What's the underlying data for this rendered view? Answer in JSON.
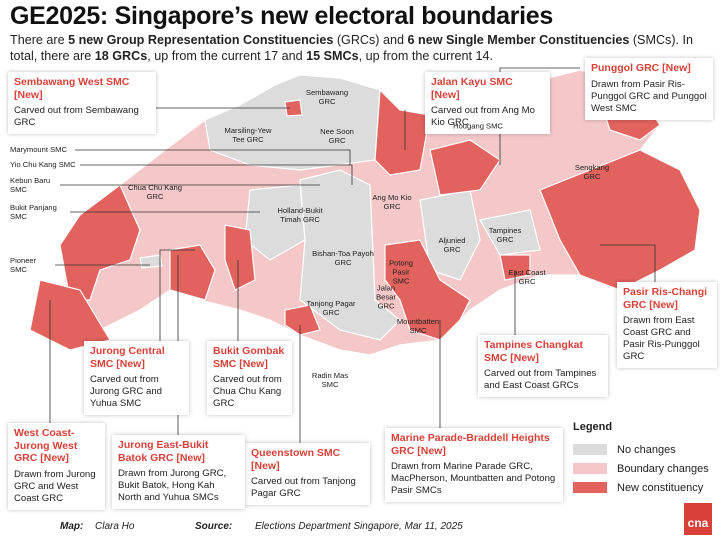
{
  "title": "GE2025: Singapore’s new electoral boundaries",
  "subtitle": [
    {
      "text": "There are ",
      "bold": false
    },
    {
      "text": "5 new Group Representation Constituencies",
      "bold": true
    },
    {
      "text": " (GRCs) and ",
      "bold": false
    },
    {
      "text": "6 new Single Member Constituencies",
      "bold": true
    },
    {
      "text": " (SMCs). In total, there are ",
      "bold": false
    },
    {
      "text": "18 GRCs",
      "bold": true
    },
    {
      "text": ", up from the current 17 and ",
      "bold": false
    },
    {
      "text": "15 SMCs",
      "bold": true
    },
    {
      "text": ", up from the current 14.",
      "bold": false
    }
  ],
  "callouts": [
    {
      "title": "Sembawang West SMC [New]",
      "note": "Carved out from Sembawang GRC"
    },
    {
      "title": "Jalan Kayu SMC [New]",
      "note": "Carved out from Ang Mo Kio GRC"
    },
    {
      "title": "Punggol GRC [New]",
      "note": "Drawn from Pasir Ris-Punggol GRC and Punggol West SMC"
    },
    {
      "title": "Pasir Ris-Changi GRC [New]",
      "note": "Drawn from East Coast GRC and Pasir Ris-Punggol GRC"
    },
    {
      "title": "Tampines Changkat SMC [New]",
      "note": "Carved out from Tampines and East Coast GRCs"
    },
    {
      "title": "Marine Parade-Braddell Heights GRC [New]",
      "note": "Drawn from Marine Parade GRC, MacPherson, Mountbatten and Potong Pasir SMCs"
    },
    {
      "title": "Queenstown SMC [New]",
      "note": "Carved out from Tanjong Pagar GRC"
    },
    {
      "title": "Jurong East-Bukit Batok GRC [New]",
      "note": "Drawn from Jurong GRC, Bukit Batok, Hong Kah North and Yuhua SMCs"
    },
    {
      "title": "West Coast-Jurong West GRC [New]",
      "note": "Drawn from Jurong GRC and West Coast GRC"
    },
    {
      "title": "Jurong Central SMC [New]",
      "note": "Carved out from Jurong GRC and Yuhua SMC"
    },
    {
      "title": "Bukit Gombak SMC [New]",
      "note": "Carved out from Chua Chu Kang GRC"
    }
  ],
  "map_labels": [
    "Sembawang GRC",
    "Marsiling-Yew Tee GRC",
    "Nee Soon GRC",
    "Hougang SMC",
    "Sengkang GRC",
    "Chua Chu Kang GRC",
    "Ang Mo Kio GRC",
    "Holland-Bukit Timah GRC",
    "Tampines GRC",
    "Aljunied GRC",
    "Bishan-Toa Payoh GRC",
    "Potong Pasir SMC",
    "East Coast GRC",
    "Tanjong Pagar GRC",
    "Jalan Besar GRC",
    "Mountbatten SMC",
    "Radin Mas SMC"
  ],
  "side_labels": [
    "Marymount SMC",
    "Yio Chu Kang SMC",
    "Kebun Baru SMC",
    "Bukit Panjang SMC",
    "Pioneer SMC"
  ],
  "legend": {
    "title": "Legend",
    "items": [
      {
        "label": "No changes",
        "color": "#dcdcdc"
      },
      {
        "label": "Boundary changes",
        "color": "#f4c8c8"
      },
      {
        "label": "New constituency",
        "color": "#e2625e"
      }
    ]
  },
  "footer": {
    "map_label": "Map:",
    "map_author": "Clara Ho",
    "source_label": "Source:",
    "source": "Elections Department Singapore, Mar 11, 2025"
  },
  "logo": "cna"
}
